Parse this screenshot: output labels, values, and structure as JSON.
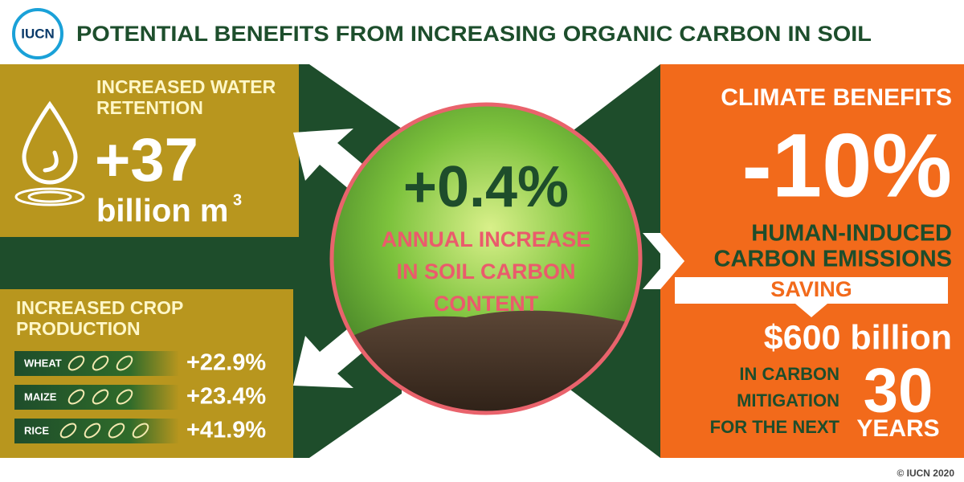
{
  "header": {
    "logo": "IUCN",
    "title": "POTENTIAL BENEFITS FROM INCREASING ORGANIC CARBON IN SOIL"
  },
  "water": {
    "heading_lines": [
      "INCREASED WATER",
      "RETENTION"
    ],
    "value": "+37",
    "unit": "billion m",
    "unit_superscript": "3"
  },
  "crops": {
    "heading_lines": [
      "INCREASED CROP",
      "PRODUCTION"
    ],
    "rows": [
      {
        "name": "WHEAT",
        "value": "+22.9%"
      },
      {
        "name": "MAIZE",
        "value": "+23.4%"
      },
      {
        "name": "RICE",
        "value": "+41.9%"
      }
    ]
  },
  "center": {
    "value": "+0.4%",
    "caption_lines": [
      "ANNUAL INCREASE",
      "IN SOIL CARBON",
      "CONTENT"
    ]
  },
  "climate": {
    "heading": "CLIMATE BENEFITS",
    "value": "-10%",
    "caption_lines": [
      "HUMAN-INDUCED",
      "CARBON EMISSIONS"
    ],
    "banner": "SAVING",
    "savings": "$600 billion",
    "detail_lines": [
      "IN CARBON",
      "MITIGATION",
      "FOR THE NEXT"
    ],
    "years_value": "30",
    "years_label": "YEARS"
  },
  "footer": {
    "copyright": "© IUCN 2020"
  }
}
